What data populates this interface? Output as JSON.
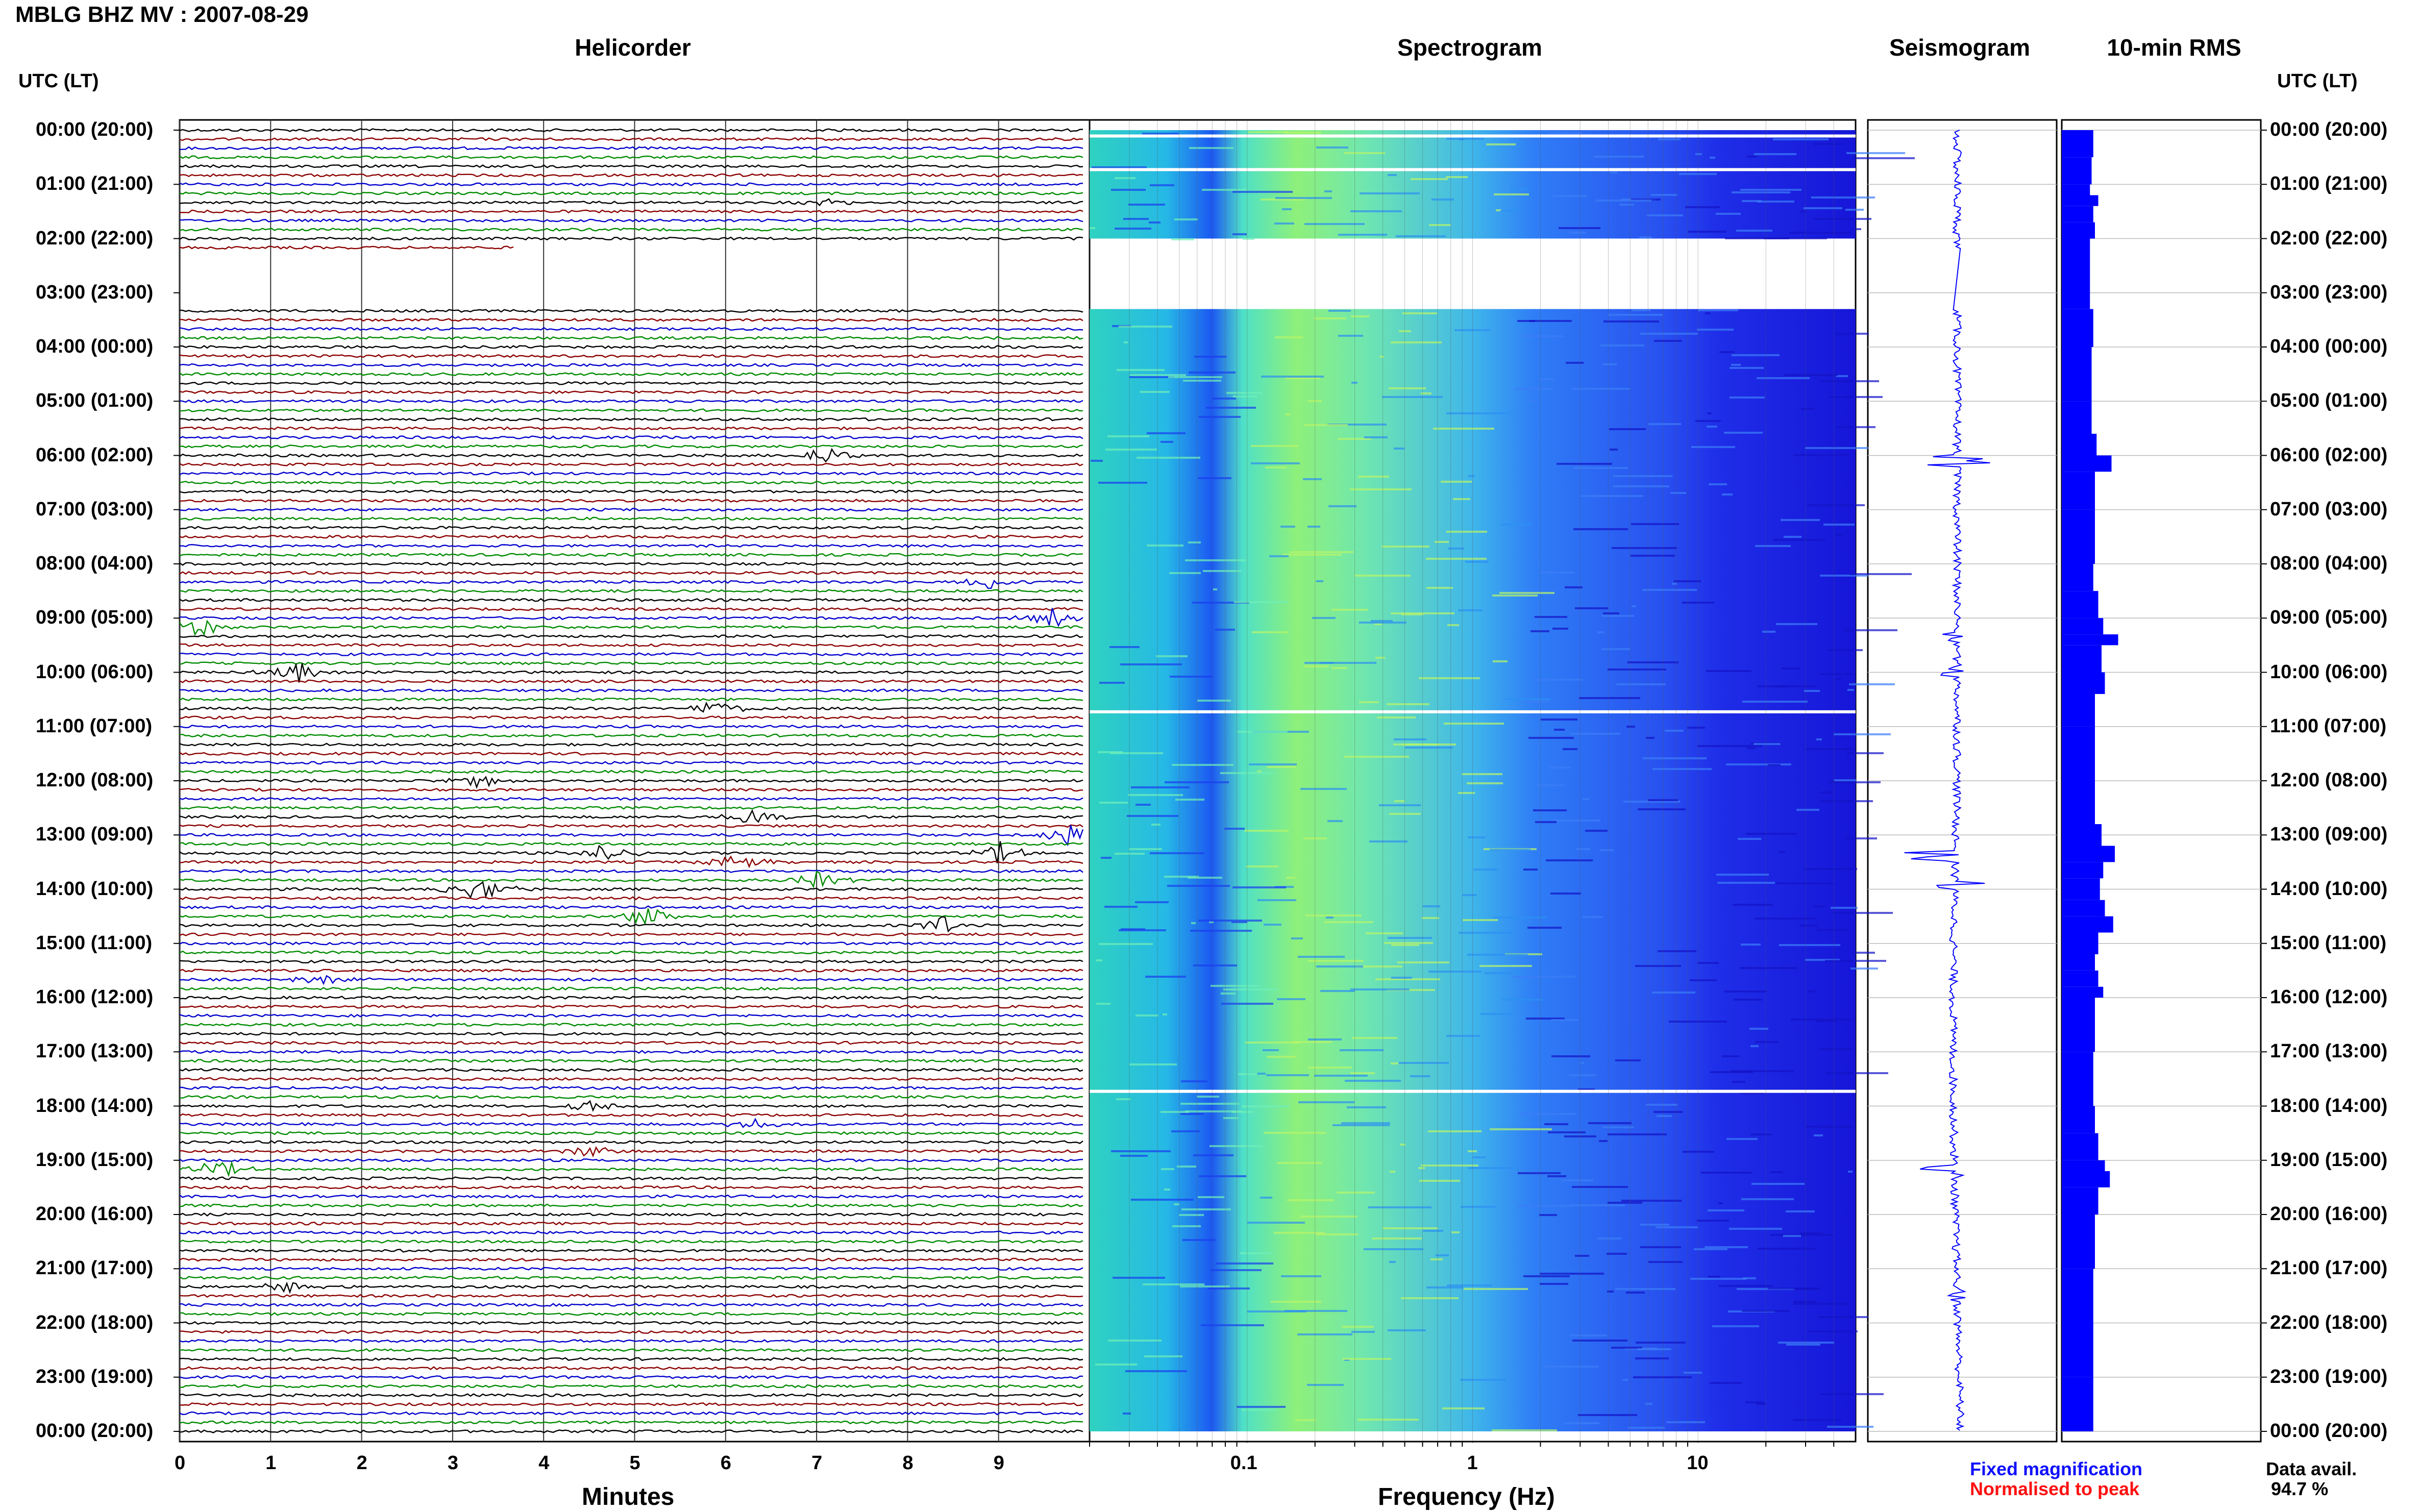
{
  "header": {
    "title": "MBLG BHZ MV : 2007-08-29"
  },
  "panels": {
    "helicorder": "Helicorder",
    "spectrogram": "Spectrogram",
    "seismogram": "Seismogram",
    "rms": "10-min RMS"
  },
  "axis_heads": {
    "left": "UTC (LT)",
    "right": "UTC (LT)"
  },
  "time_labels": [
    "00:00 (20:00)",
    "01:00 (21:00)",
    "02:00 (22:00)",
    "03:00 (23:00)",
    "04:00 (00:00)",
    "05:00 (01:00)",
    "06:00 (02:00)",
    "07:00 (03:00)",
    "08:00 (04:00)",
    "09:00 (05:00)",
    "10:00 (06:00)",
    "11:00 (07:00)",
    "12:00 (08:00)",
    "13:00 (09:00)",
    "14:00 (10:00)",
    "15:00 (11:00)",
    "16:00 (12:00)",
    "17:00 (13:00)",
    "18:00 (14:00)",
    "19:00 (15:00)",
    "20:00 (16:00)",
    "21:00 (17:00)",
    "22:00 (18:00)",
    "23:00 (19:00)",
    "00:00 (20:00)"
  ],
  "x_axes": {
    "minutes_label": "Minutes",
    "minutes_ticks": [
      "0",
      "1",
      "2",
      "3",
      "4",
      "5",
      "6",
      "7",
      "8",
      "9"
    ],
    "frequency_label": "Frequency (Hz)",
    "frequency_ticks": [
      "0.1",
      "1",
      "10"
    ]
  },
  "legend": {
    "fixed": "Fixed magnification",
    "normalised": "Normalised to peak"
  },
  "data_avail": {
    "label": "Data avail.",
    "value": "94.7 %"
  },
  "colors": {
    "trace_cycle": [
      "#000000",
      "#8b0000",
      "#0000cd",
      "#008b00"
    ],
    "spectrogram_low": "#1a1aee",
    "spectrogram_high": "#7fffa0",
    "rms_bar": "#0000ff",
    "seismogram": "#0000ff"
  },
  "chart_data": [
    {
      "type": "line",
      "name": "Helicorder",
      "xlabel": "Minutes",
      "xlim": [
        0,
        10
      ],
      "rows_per_hour": 6,
      "gap_hours": [
        2.2,
        3.3
      ],
      "events": [
        {
          "hour": 1.3,
          "minute": 7.2,
          "amp": 0.5
        },
        {
          "hour": 6.0,
          "minute": 7.1,
          "amp": 1.0
        },
        {
          "hour": 8.3,
          "minute": 8.9,
          "amp": 0.7
        },
        {
          "hour": 9.0,
          "minute": 9.6,
          "amp": 1.0
        },
        {
          "hour": 9.2,
          "minute": 0.2,
          "amp": 1.0
        },
        {
          "hour": 10.0,
          "minute": 1.3,
          "amp": 0.9
        },
        {
          "hour": 10.7,
          "minute": 5.9,
          "amp": 0.8
        },
        {
          "hour": 12.0,
          "minute": 3.3,
          "amp": 0.6
        },
        {
          "hour": 12.7,
          "minute": 6.3,
          "amp": 0.8
        },
        {
          "hour": 13.0,
          "minute": 9.8,
          "amp": 1.2
        },
        {
          "hour": 13.3,
          "minute": 9.0,
          "amp": 1.0
        },
        {
          "hour": 13.3,
          "minute": 4.7,
          "amp": 0.9
        },
        {
          "hour": 13.5,
          "minute": 6.1,
          "amp": 0.8
        },
        {
          "hour": 13.8,
          "minute": 7.0,
          "amp": 0.8
        },
        {
          "hour": 14.0,
          "minute": 3.3,
          "amp": 1.2
        },
        {
          "hour": 14.5,
          "minute": 5.1,
          "amp": 1.0
        },
        {
          "hour": 14.7,
          "minute": 8.4,
          "amp": 0.9
        },
        {
          "hour": 15.7,
          "minute": 1.6,
          "amp": 0.6
        },
        {
          "hour": 18.0,
          "minute": 4.5,
          "amp": 0.6
        },
        {
          "hour": 18.3,
          "minute": 6.3,
          "amp": 0.6
        },
        {
          "hour": 18.8,
          "minute": 4.5,
          "amp": 0.6
        },
        {
          "hour": 19.2,
          "minute": 0.4,
          "amp": 1.1
        },
        {
          "hour": 21.3,
          "minute": 1.2,
          "amp": 0.6
        }
      ]
    },
    {
      "type": "heatmap",
      "name": "Spectrogram",
      "xlabel": "Frequency (Hz)",
      "xscale": "log",
      "xlim": [
        0.02,
        50
      ],
      "gap_hours": [
        2.2,
        3.3
      ]
    },
    {
      "type": "line",
      "name": "Seismogram",
      "gap_hours": [
        2.2,
        3.3
      ],
      "spikes": [
        {
          "hour": 6.1,
          "amp": 0.9
        },
        {
          "hour": 9.35,
          "amp": 0.7
        },
        {
          "hour": 10.0,
          "amp": 0.5
        },
        {
          "hour": 13.4,
          "amp": 1.5
        },
        {
          "hour": 13.9,
          "amp": 1.0
        },
        {
          "hour": 19.2,
          "amp": 1.0
        },
        {
          "hour": 21.5,
          "amp": 0.3
        }
      ]
    },
    {
      "type": "bar",
      "name": "10-min RMS",
      "orientation": "horizontal",
      "gap_hours": [
        2.2,
        3.3
      ],
      "values_by_hour": [
        [
          0.0,
          0.95
        ],
        [
          0.5,
          0.9
        ],
        [
          1.0,
          0.85
        ],
        [
          1.2,
          1.1
        ],
        [
          1.4,
          0.95
        ],
        [
          1.7,
          1.0
        ],
        [
          2.0,
          0.85
        ],
        [
          3.3,
          0.95
        ],
        [
          4.0,
          0.9
        ],
        [
          5.0,
          0.9
        ],
        [
          5.6,
          1.05
        ],
        [
          6.0,
          1.5
        ],
        [
          6.3,
          1.0
        ],
        [
          7.0,
          1.0
        ],
        [
          8.0,
          0.95
        ],
        [
          8.5,
          1.1
        ],
        [
          9.0,
          1.25
        ],
        [
          9.3,
          1.7
        ],
        [
          9.5,
          1.2
        ],
        [
          10.0,
          1.3
        ],
        [
          10.4,
          1.0
        ],
        [
          11.0,
          1.0
        ],
        [
          12.0,
          1.0
        ],
        [
          12.8,
          1.2
        ],
        [
          13.2,
          1.6
        ],
        [
          13.5,
          1.25
        ],
        [
          13.8,
          1.15
        ],
        [
          14.2,
          1.3
        ],
        [
          14.5,
          1.55
        ],
        [
          14.8,
          1.1
        ],
        [
          15.2,
          1.0
        ],
        [
          15.5,
          1.1
        ],
        [
          15.8,
          1.25
        ],
        [
          16.0,
          1.0
        ],
        [
          17.0,
          0.95
        ],
        [
          18.0,
          1.0
        ],
        [
          18.5,
          1.1
        ],
        [
          19.0,
          1.3
        ],
        [
          19.2,
          1.45
        ],
        [
          19.5,
          1.1
        ],
        [
          20.0,
          1.0
        ],
        [
          21.0,
          0.95
        ],
        [
          22.0,
          0.95
        ],
        [
          23.0,
          0.95
        ]
      ]
    }
  ]
}
